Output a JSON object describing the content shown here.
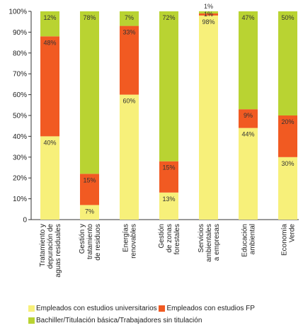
{
  "colors": {
    "universitarios": "#f7f07a",
    "fp": "#f15a22",
    "bachiller": "#b9d332"
  },
  "chart_data": {
    "type": "bar",
    "stacked": true,
    "categories": [
      "Tratamiento y depuración de aguas residuales",
      "Gestión y tratamiento de residuos",
      "Energías renovables",
      "Gestión de zonas forestales",
      "Servicios ambientales a empresas",
      "Educación ambiental",
      "Economía Verde"
    ],
    "category_lines": [
      [
        "Tratamiento y",
        "depuración de",
        "aguas residuales"
      ],
      [
        "Gestión y",
        "tratamiento",
        "de residuos"
      ],
      [
        "Energías",
        "renovables"
      ],
      [
        "Gestión",
        "de zonas",
        "forestales"
      ],
      [
        "Servicios",
        "ambientales",
        "a empresas"
      ],
      [
        "Educación",
        "ambiental"
      ],
      [
        "Economía",
        "Verde"
      ]
    ],
    "series": [
      {
        "name": "Empleados con estudios universitarios",
        "color": "#f7f07a",
        "values": [
          40,
          7,
          60,
          13,
          98,
          44,
          30
        ],
        "labels": [
          "40%",
          "7%",
          "60%",
          "13%",
          "98%",
          "44%",
          "30%"
        ]
      },
      {
        "name": "Empleados con estudios FP",
        "color": "#f15a22",
        "values": [
          48,
          15,
          33,
          15,
          1,
          9,
          20
        ],
        "labels": [
          "48%",
          "15%",
          "33%",
          "15%",
          "1%",
          "9%",
          "20%"
        ]
      },
      {
        "name": "Bachiller/Titulación básica/Trabajadores sin titulación",
        "color": "#b9d332",
        "values": [
          12,
          78,
          7,
          72,
          1,
          47,
          50
        ],
        "labels": [
          "12%",
          "78%",
          "7%",
          "72%",
          "1%",
          "47%",
          "50%"
        ]
      }
    ],
    "yticks": [
      "0",
      "10%",
      "20%",
      "30%",
      "40%",
      "50%",
      "60%",
      "70%",
      "80%",
      "90%",
      "100%"
    ],
    "ylim": [
      0,
      100
    ],
    "legend": "bottom",
    "grid": false
  }
}
